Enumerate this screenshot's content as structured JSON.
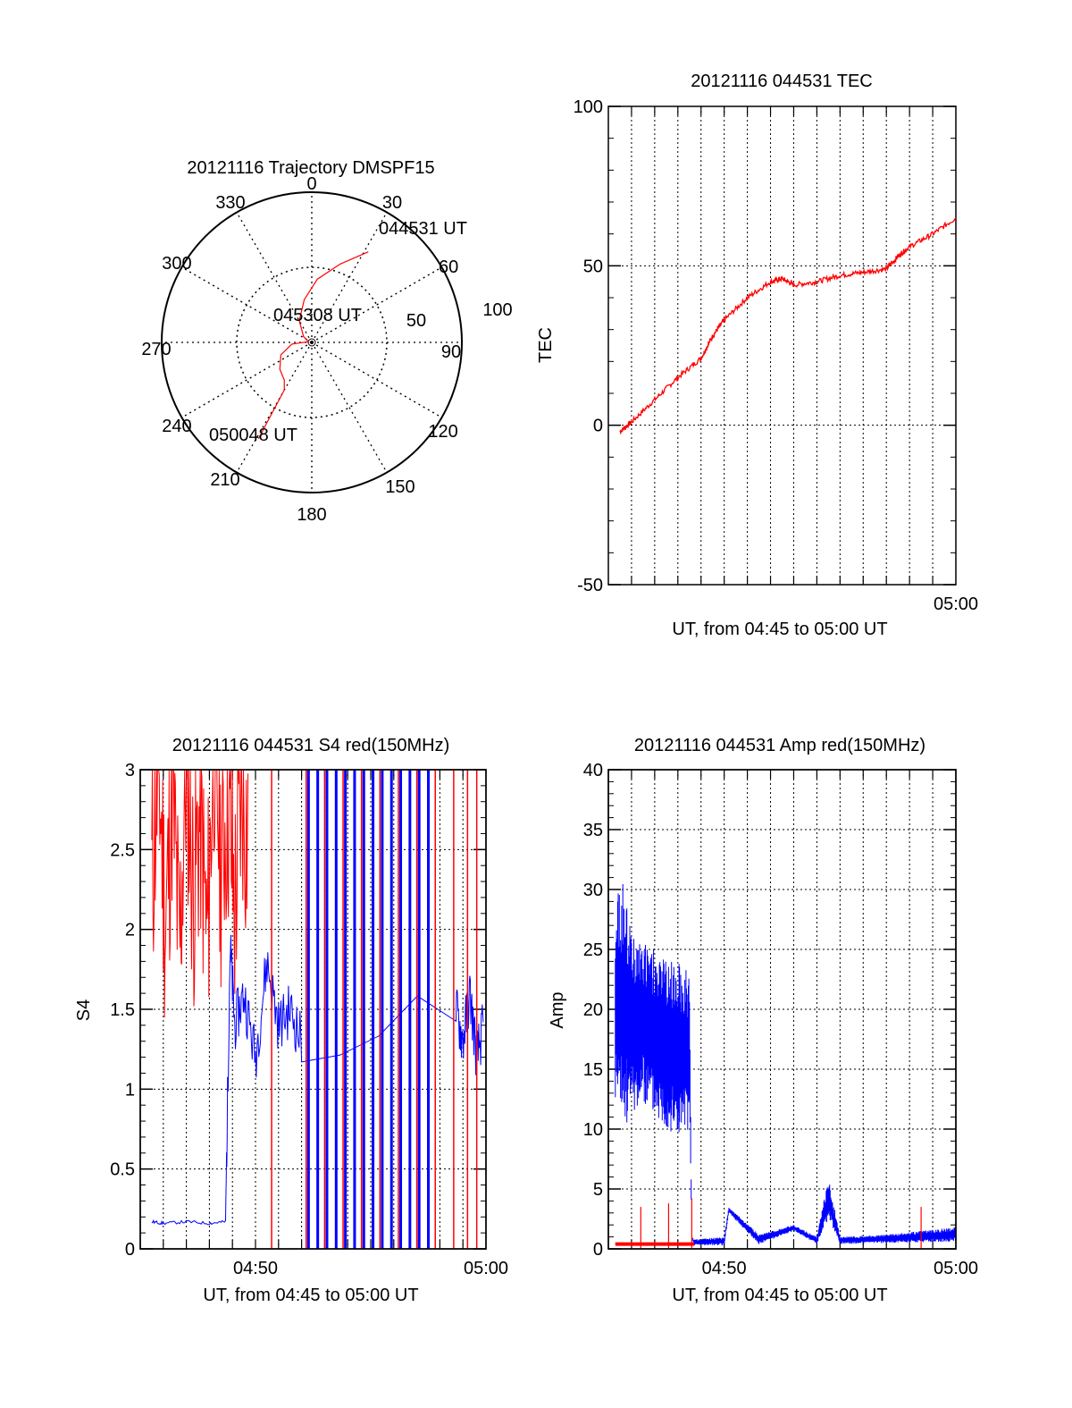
{
  "chart_data": [
    {
      "type": "polar",
      "title": "20121116 Trajectory DMSPF15",
      "angle_labels": [
        "0",
        "30",
        "60",
        "90",
        "120",
        "150",
        "180",
        "210",
        "240",
        "270",
        "300",
        "330"
      ],
      "radial_labels": [
        "50",
        "100"
      ],
      "series": [
        {
          "color": "#ff0000",
          "points": [
            {
              "az": 32,
              "el": 26
            },
            {
              "az": 20,
              "el": 40
            },
            {
              "az": 5,
              "el": 52
            },
            {
              "az": -10,
              "el": 64
            },
            {
              "az": -30,
              "el": 75
            },
            {
              "az": -55,
              "el": 84
            },
            {
              "az": -78,
              "el": 88
            },
            {
              "az": -95,
              "el": 78
            },
            {
              "az": -112,
              "el": 70
            },
            {
              "az": -130,
              "el": 65
            },
            {
              "az": -144,
              "el": 62
            },
            {
              "az": -150,
              "el": 57
            },
            {
              "az": -151,
              "el": 24
            }
          ]
        }
      ],
      "annotations": [
        {
          "text": "044531 UT",
          "az": 32,
          "el": 26
        },
        {
          "text": "045308 UT",
          "az": -10,
          "el": 78
        },
        {
          "text": "050048 UT",
          "az": -151,
          "el": 24
        }
      ]
    },
    {
      "type": "line",
      "title": "20121116 044531 TEC",
      "xlabel": "UT, from 04:45 to 05:00 UT",
      "ylabel": "TEC",
      "xlim": [
        0,
        15
      ],
      "ylim": [
        -50,
        100
      ],
      "xticks": [
        {
          "value": 15,
          "label": "05:00"
        }
      ],
      "yticks": [
        -50,
        0,
        50,
        100
      ],
      "series": [
        {
          "color": "#ff0000",
          "x": [
            0.5,
            1.0,
            2.0,
            3.0,
            4.0,
            4.5,
            5.0,
            6.0,
            7.0,
            7.5,
            8.0,
            9.0,
            10.0,
            11.0,
            12.0,
            12.5,
            13.0,
            14.0,
            15.0
          ],
          "y": [
            -2,
            1,
            8,
            15,
            21,
            28,
            33,
            40,
            45,
            46,
            44,
            45,
            47,
            48,
            49,
            53,
            56,
            60,
            65
          ]
        }
      ]
    },
    {
      "type": "line",
      "title": "20121116 044531 S4 red(150MHz)",
      "xlabel": "UT, from 04:45 to 05:00 UT",
      "ylabel": "S4",
      "xlim": [
        0,
        15
      ],
      "ylim": [
        0,
        3
      ],
      "xticks": [
        {
          "value": 5,
          "label": "04:50"
        },
        {
          "value": 15,
          "label": "05:00"
        }
      ],
      "yticks": [
        0,
        0.5,
        1,
        1.5,
        2,
        2.5,
        3
      ],
      "series": [
        {
          "color": "#ff0000",
          "x": [
            0.5,
            0.8,
            1.1,
            1.4,
            1.7,
            2.0,
            2.3,
            2.6,
            2.9,
            3.2,
            3.5,
            3.8,
            4.1,
            4.4,
            4.7
          ],
          "y": [
            2.0,
            2.7,
            1.7,
            2.6,
            1.5,
            2.8,
            1.9,
            2.4,
            1.6,
            2.9,
            2.1,
            2.5,
            1.8,
            2.6,
            2.2
          ],
          "spikes_x": [
            5.7,
            7.2,
            8.0,
            8.8,
            9.6,
            10.4,
            11.2,
            12.0,
            12.8,
            13.6,
            14.2,
            14.6
          ]
        },
        {
          "color": "#0000ff",
          "x": [
            0.5,
            1.0,
            2.0,
            3.0,
            3.7,
            3.9,
            4.1,
            4.5,
            5.0,
            5.5,
            6.0,
            6.5,
            7.0,
            13.7,
            14.0,
            14.3,
            14.6,
            14.9
          ],
          "y": [
            0.17,
            0.16,
            0.17,
            0.16,
            0.17,
            1.9,
            1.4,
            1.6,
            1.2,
            1.8,
            1.4,
            1.5,
            1.3,
            1.5,
            1.3,
            1.6,
            1.2,
            1.4
          ],
          "spikes_x": [
            7.3,
            7.7,
            8.1,
            8.5,
            8.9,
            9.3,
            9.7,
            10.1,
            10.5,
            10.9,
            11.3,
            11.7,
            12.1,
            12.5
          ]
        }
      ]
    },
    {
      "type": "line",
      "title": "20121116 044531 Amp red(150MHz)",
      "xlabel": "UT, from 04:45 to 05:00 UT",
      "ylabel": "Amp",
      "xlim": [
        0,
        15
      ],
      "ylim": [
        0,
        40
      ],
      "xticks": [
        {
          "value": 5,
          "label": "04:50"
        },
        {
          "value": 15,
          "label": "05:00"
        }
      ],
      "yticks": [
        0,
        5,
        10,
        15,
        20,
        25,
        30,
        35,
        40
      ],
      "series": [
        {
          "color": "#0000ff",
          "x": [
            0.3,
            0.6,
            1.0,
            1.5,
            2.0,
            2.5,
            3.0,
            3.5,
            3.6,
            3.7,
            5.0,
            5.2,
            6.5,
            8.0,
            9.0,
            9.5,
            10.0,
            12.0,
            15.0
          ],
          "y_low": [
            12,
            10,
            11,
            12,
            11,
            10,
            9,
            10,
            1,
            0.3,
            0.3,
            3,
            0.4,
            1.5,
            0.4,
            2.5,
            0.4,
            0.5,
            0.6
          ],
          "y_high": [
            29,
            31,
            27,
            26,
            25,
            24,
            24,
            23,
            1,
            0.8,
            1.0,
            3.5,
            1.2,
            2,
            1.0,
            6,
            1.0,
            1.2,
            1.8
          ]
        },
        {
          "color": "#ff0000",
          "x": [
            0.3,
            3.7
          ],
          "y": [
            0.4,
            0.4
          ],
          "spikes_x": [
            1.4,
            2.6,
            3.6,
            13.5
          ],
          "spikes_y": [
            3.5,
            3.8,
            4.2,
            3.5
          ]
        }
      ]
    }
  ]
}
